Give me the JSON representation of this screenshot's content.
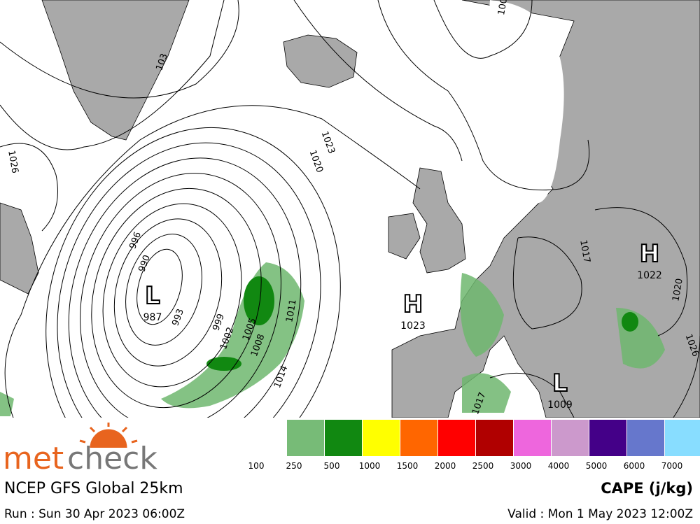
{
  "map": {
    "isobar_labels": [
      "1026",
      "103",
      "1023",
      "1020",
      "996",
      "990",
      "993",
      "999",
      "1002",
      "1005",
      "1008",
      "1011",
      "1014",
      "1017",
      "1020",
      "1026",
      "1017",
      "100"
    ],
    "centers": [
      {
        "letter": "L",
        "value": "987"
      },
      {
        "letter": "H",
        "value": "1023"
      },
      {
        "letter": "H",
        "value": "1022"
      },
      {
        "letter": "L",
        "value": "1009"
      }
    ]
  },
  "logo": {
    "part1": "met",
    "part2": "check"
  },
  "model": "NCEP GFS Global 25km",
  "run": "Run : Sun 30 Apr 2023 06:00Z",
  "valid": "Valid : Mon 1 May 2023 12:00Z",
  "legend": {
    "title": "CAPE (j/kg)",
    "labels": [
      100,
      250,
      500,
      1000,
      1500,
      2000,
      2500,
      3000,
      4000,
      5000,
      6000,
      7000
    ],
    "colors": [
      "#77bb77",
      "#118811",
      "#ffff00",
      "#ff6600",
      "#ff0000",
      "#b00000",
      "#ee66dd",
      "#cc99cc",
      "#440088",
      "#6677cc",
      "#88ddff"
    ]
  }
}
